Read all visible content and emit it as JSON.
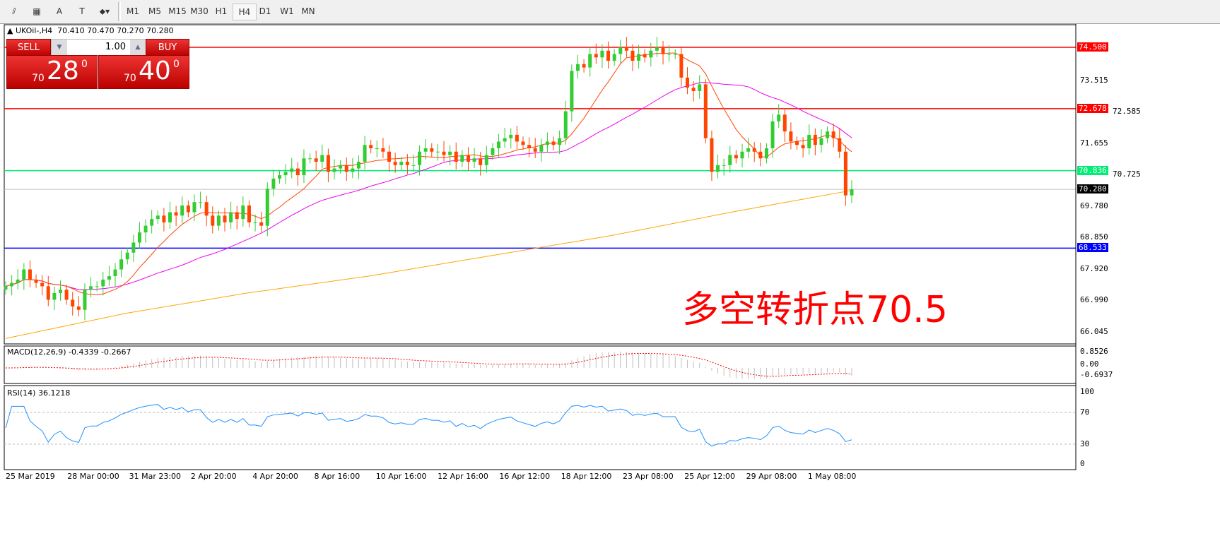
{
  "toolbar": {
    "tools": [
      {
        "name": "fibonacci-channel-icon",
        "glyph": "⫽"
      },
      {
        "name": "fibonacci-grid-icon",
        "glyph": "▦"
      },
      {
        "name": "text-icon",
        "glyph": "A"
      },
      {
        "name": "text-label-icon",
        "glyph": "T"
      },
      {
        "name": "arrows-icon",
        "glyph": "⬥▾"
      }
    ],
    "timeframes": [
      "M1",
      "M5",
      "M15",
      "M30",
      "H1",
      "H4",
      "D1",
      "W1",
      "MN"
    ],
    "active": "H4"
  },
  "header": {
    "symbol": "UKOil-,H4",
    "ohlc": "70.410 70.470 70.270 70.280"
  },
  "trade": {
    "sell": "SELL",
    "buy": "BUY",
    "lot": "1.00",
    "sell_small": "70",
    "sell_big": "28",
    "sell_pip": "0",
    "buy_small": "70",
    "buy_big": "40",
    "buy_pip": "0"
  },
  "annotation": "多空转折点70.5",
  "price_axis": [
    "73.515",
    "72.585",
    "71.655",
    "70.725",
    "69.780",
    "68.850",
    "67.920",
    "66.990",
    "66.045"
  ],
  "levels": [
    {
      "price": 74.5,
      "label": "74.500",
      "color": "#ff0000"
    },
    {
      "price": 72.678,
      "label": "72.678",
      "color": "#ff0000"
    },
    {
      "price": 70.836,
      "label": "70.836",
      "color": "#00ee76"
    },
    {
      "price": 70.28,
      "label": "70.280",
      "color": "#000000"
    },
    {
      "price": 68.533,
      "label": "68.533",
      "color": "#0000ff"
    }
  ],
  "macd": {
    "label": "MACD(12,26,9) -0.4339 -0.2667",
    "axis": [
      "0.8526",
      "0.00",
      "-0.6937"
    ]
  },
  "rsi": {
    "label": "RSI(14) 36.1218",
    "axis": [
      "100",
      "70",
      "30",
      "0"
    ]
  },
  "time_axis": [
    "25 Mar 2019",
    "28 Mar 00:00",
    "31 Mar 23:00",
    "2 Apr 20:00",
    "4 Apr 20:00",
    "8 Apr 16:00",
    "10 Apr 16:00",
    "12 Apr 16:00",
    "16 Apr 12:00",
    "18 Apr 12:00",
    "23 Apr 08:00",
    "25 Apr 12:00",
    "29 Apr 08:00",
    "1 May 08:00"
  ],
  "chart_data": {
    "type": "candlestick",
    "colors": {
      "bull": "#32cd32",
      "bear": "#ff4500",
      "ma_fast": "#ff4500",
      "ma_mid": "#ee00ee",
      "ma_long": "#ffa500",
      "rsi": "#1e90ff"
    },
    "closes": [
      67.4,
      67.5,
      67.6,
      67.9,
      67.6,
      67.5,
      67.4,
      67.0,
      67.2,
      67.3,
      67.0,
      66.8,
      66.7,
      67.3,
      67.4,
      67.4,
      67.6,
      67.7,
      67.9,
      68.2,
      68.4,
      68.7,
      69.0,
      69.2,
      69.4,
      69.5,
      69.3,
      69.6,
      69.5,
      69.8,
      69.6,
      69.9,
      69.9,
      69.5,
      69.2,
      69.5,
      69.3,
      69.6,
      69.4,
      69.8,
      69.3,
      69.3,
      69.2,
      70.3,
      70.6,
      70.7,
      70.8,
      70.9,
      70.7,
      71.2,
      71.2,
      71.1,
      71.3,
      70.8,
      70.9,
      71.0,
      70.8,
      70.9,
      71.1,
      71.6,
      71.5,
      71.5,
      71.4,
      71.1,
      71.0,
      71.1,
      71.0,
      71.0,
      71.4,
      71.5,
      71.4,
      71.4,
      71.3,
      71.4,
      71.1,
      71.3,
      71.1,
      71.2,
      71.0,
      71.3,
      71.5,
      71.7,
      71.8,
      71.9,
      71.7,
      71.6,
      71.5,
      71.4,
      71.6,
      71.7,
      71.6,
      71.8,
      72.6,
      73.8,
      74.0,
      73.9,
      74.3,
      74.2,
      74.4,
      74.1,
      74.3,
      74.5,
      74.4,
      74.1,
      74.3,
      74.2,
      74.4,
      74.5,
      74.3,
      74.3,
      74.3,
      73.6,
      73.3,
      73.2,
      73.4,
      71.8,
      70.8,
      71.0,
      71.0,
      71.3,
      71.2,
      71.4,
      71.5,
      71.4,
      71.2,
      71.5,
      72.3,
      72.5,
      72.0,
      71.7,
      71.6,
      71.5,
      71.9,
      71.6,
      71.8,
      72.0,
      71.8,
      71.4,
      70.1,
      70.28
    ],
    "ma_long": [
      65.85,
      66.6,
      67.2,
      67.7,
      68.3,
      68.9,
      69.6,
      70.25
    ],
    "ylim": [
      66.045,
      74.5
    ]
  }
}
